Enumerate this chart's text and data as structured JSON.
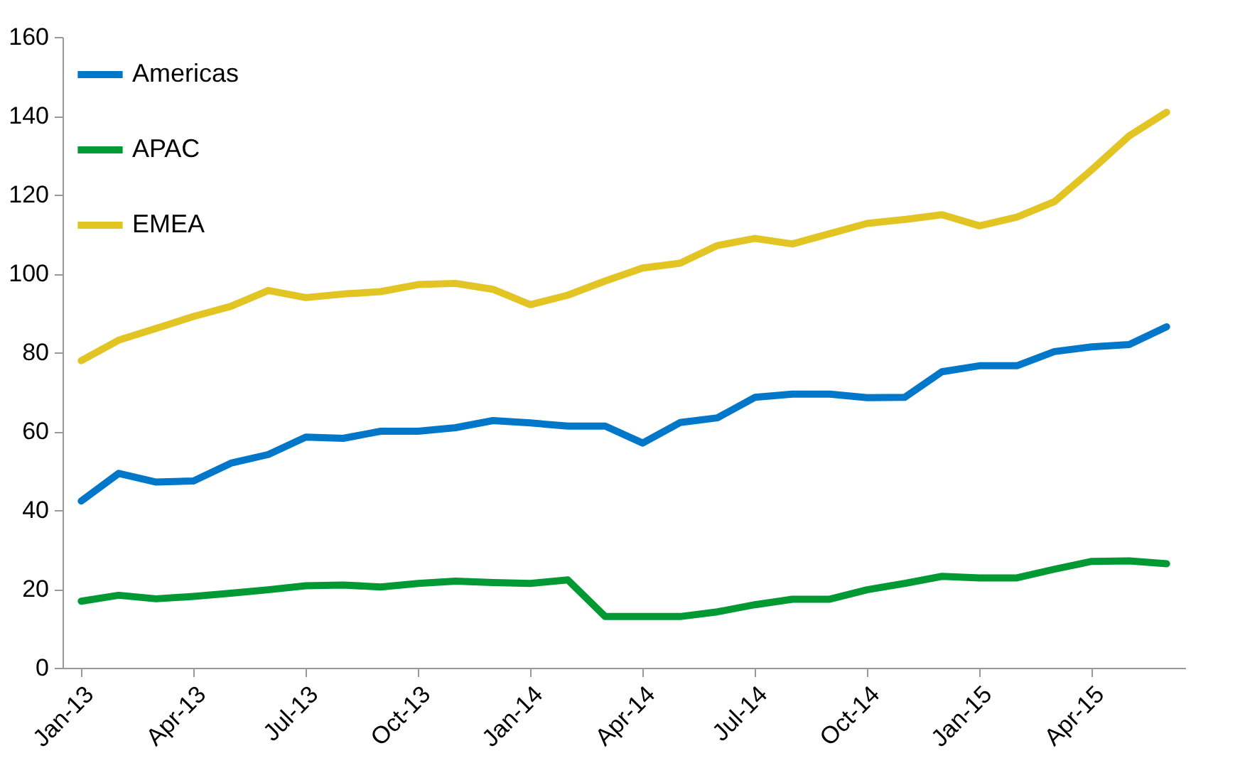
{
  "chart_data": {
    "type": "line",
    "categories": [
      "Jan-13",
      null,
      null,
      "Apr-13",
      null,
      null,
      "Jul-13",
      null,
      null,
      "Oct-13",
      null,
      null,
      "Jan-14",
      null,
      null,
      "Apr-14",
      null,
      null,
      "Jul-14",
      null,
      null,
      "Oct-14",
      null,
      null,
      "Jan-15",
      null,
      null,
      "Apr-15",
      null,
      null
    ],
    "series": [
      {
        "name": "Americas",
        "color": "#0077c8",
        "values": [
          42.3,
          49.3,
          47.1,
          47.4,
          51.9,
          54.1,
          58.5,
          58.2,
          60.0,
          60.0,
          60.9,
          62.7,
          62.1,
          61.3,
          61.3,
          57.0,
          62.2,
          63.4,
          68.6,
          69.4,
          69.4,
          68.5,
          68.6,
          75.1,
          76.6,
          76.6,
          80.2,
          81.4,
          82.0,
          86.5
        ]
      },
      {
        "name": "APAC",
        "color": "#009933",
        "values": [
          16.9,
          18.4,
          17.5,
          18.1,
          18.9,
          19.8,
          20.8,
          21.0,
          20.5,
          21.4,
          22.0,
          21.6,
          21.4,
          22.3,
          13.0,
          13.0,
          13.0,
          14.2,
          16.0,
          17.4,
          17.4,
          19.8,
          21.4,
          23.2,
          22.8,
          22.8,
          25.0,
          27.0,
          27.1,
          26.4
        ]
      },
      {
        "name": "EMEA",
        "color": "#e2c422",
        "values": [
          77.9,
          83.1,
          86.1,
          89.1,
          91.7,
          95.7,
          93.9,
          94.8,
          95.4,
          97.2,
          97.5,
          96.0,
          92.1,
          94.5,
          98.1,
          101.4,
          102.6,
          107.1,
          108.9,
          107.5,
          110.1,
          112.7,
          113.7,
          114.9,
          112.1,
          114.3,
          118.2,
          126.3,
          134.9,
          140.9
        ]
      }
    ],
    "ylim": [
      0,
      160
    ],
    "yticks": [
      0,
      20,
      40,
      60,
      80,
      100,
      120,
      140,
      160
    ],
    "grid": false,
    "legend": "top left",
    "marker": "none",
    "line_style": "solid"
  }
}
